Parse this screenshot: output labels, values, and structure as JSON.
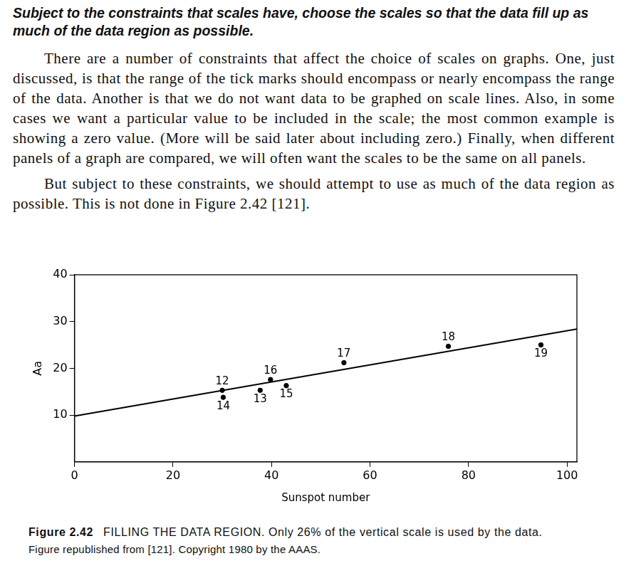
{
  "heading": "Subject to the constraints that scales have, choose the scales so that the data fill up as much of the data region as possible.",
  "paragraphs": [
    "There are a number of constraints that affect the choice of scales on graphs. One, just discussed, is that the range of the tick marks should encompass or nearly encompass the range of the data. Another is that we do not want data to be graphed on scale lines. Also, in some cases we want a particular value to be included in the scale; the most common example is showing a zero value. (More will be said later about including zero.) Finally, when different panels of a graph are compared, we will often want the scales to be the same on all panels.",
    "But subject to these constraints, we should attempt to use as much of the data region as possible. This is not done in Figure 2.42 [121]."
  ],
  "chart_data": {
    "type": "scatter",
    "xlabel": "Sunspot number",
    "ylabel": "Aa",
    "xlim": [
      0,
      102
    ],
    "ylim": [
      0,
      40
    ],
    "xticks": [
      0,
      20,
      40,
      60,
      80,
      100
    ],
    "yticks": [
      10,
      20,
      30,
      40
    ],
    "grid": false,
    "series": [
      {
        "type": "scatter",
        "color": "#000000",
        "marker": "circle",
        "x": [
          30,
          30.2,
          37.7,
          39.8,
          43,
          54.7,
          75.9,
          94.7
        ],
        "values": [
          15.3,
          13.8,
          15.3,
          17.6,
          16.3,
          21.2,
          24.7,
          25
        ],
        "point_labels": [
          "12",
          "14",
          "13",
          "16",
          "15",
          "17",
          "18",
          "19"
        ]
      },
      {
        "type": "line",
        "color": "#000000",
        "marker": "none",
        "line_style": "solid",
        "x": [
          0,
          102
        ],
        "values": [
          9.8,
          28.4
        ]
      }
    ]
  },
  "caption": {
    "label": "Figure 2.42",
    "text": "FILLING THE DATA REGION. Only 26% of the vertical scale is used by the data.",
    "credit": "Figure republished from [121]. Copyright 1980 by the AAAS."
  }
}
